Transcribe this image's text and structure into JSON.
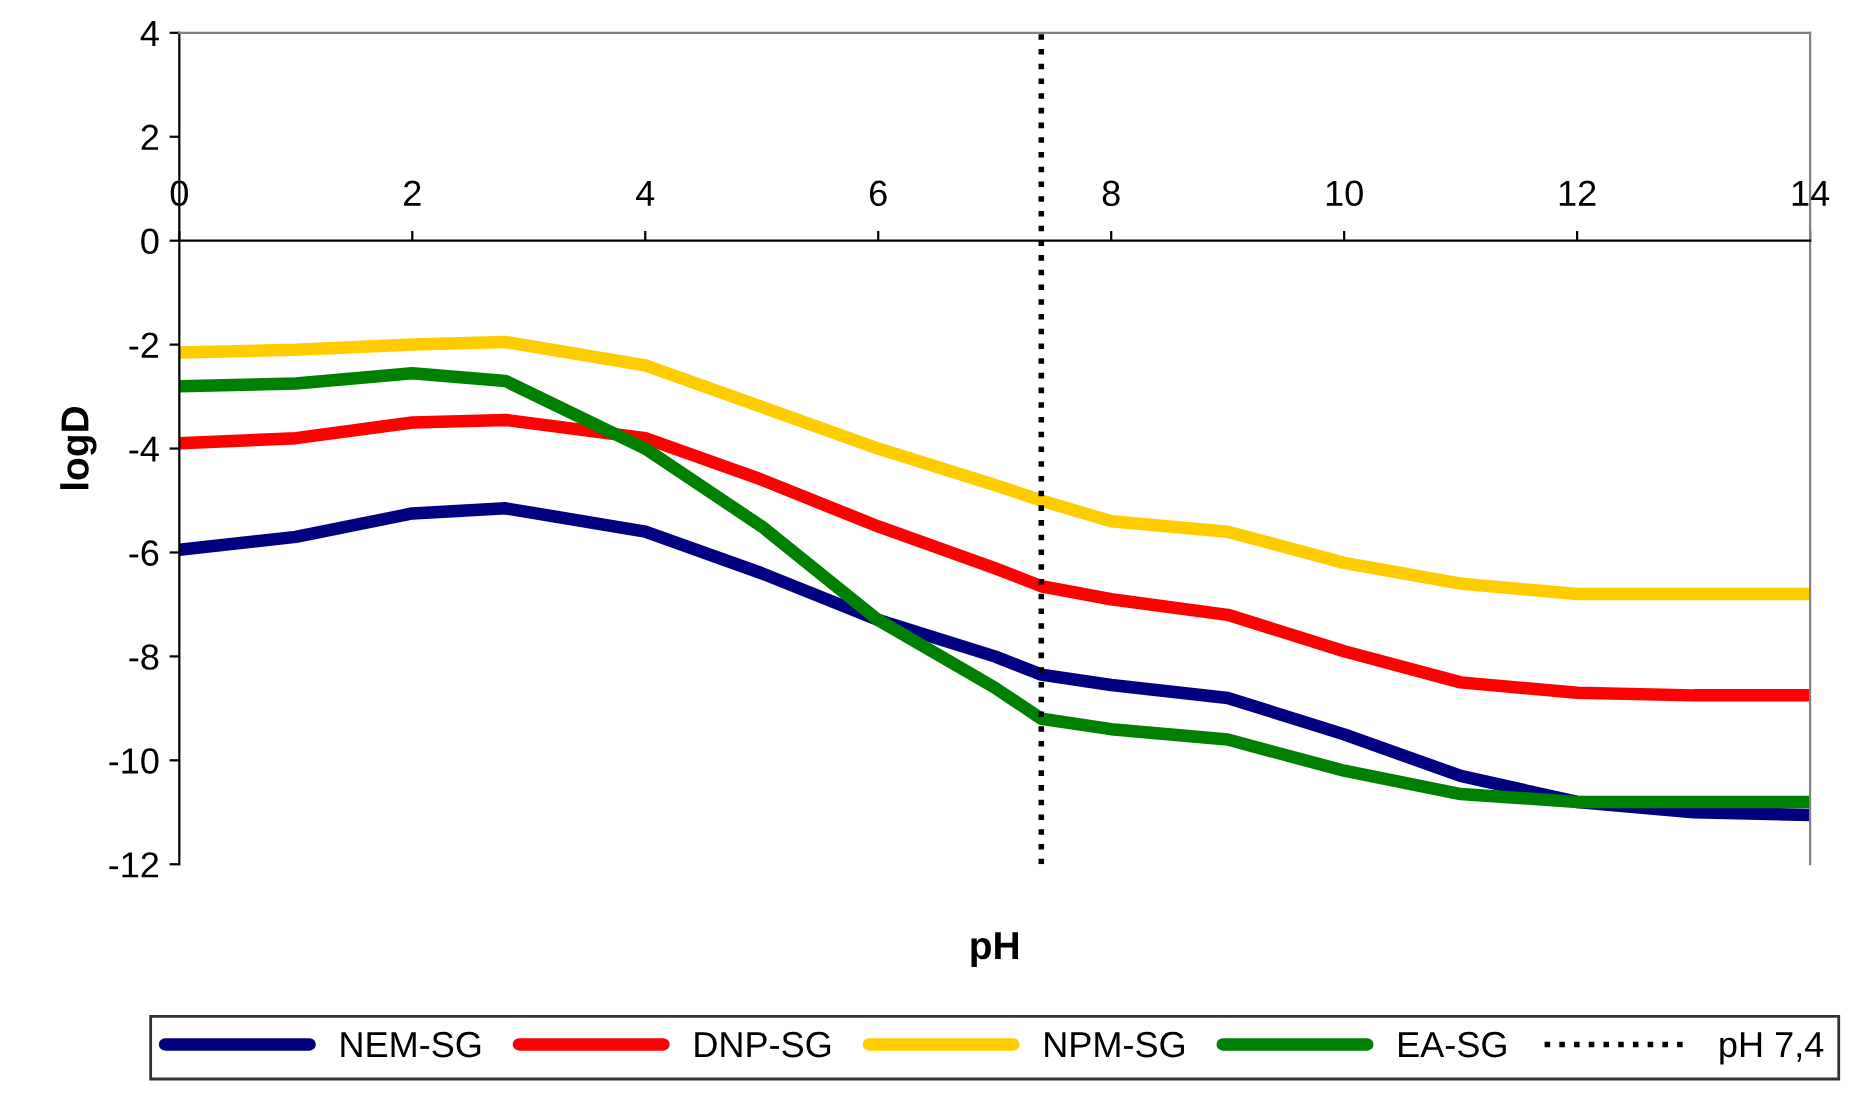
{
  "chart_data": {
    "type": "line",
    "xlabel": "pH",
    "ylabel": "logD",
    "xlim": [
      0,
      14
    ],
    "ylim": [
      -12,
      4
    ],
    "xticks": [
      0,
      2,
      4,
      6,
      8,
      10,
      12,
      14
    ],
    "yticks": [
      -12,
      -10,
      -8,
      -6,
      -4,
      -2,
      0,
      2,
      4
    ],
    "x": [
      0,
      1,
      2,
      2.8,
      4,
      5,
      6,
      7,
      7.4,
      8,
      9,
      10,
      11,
      12,
      13,
      14
    ],
    "series": [
      {
        "name": "NEM-SG",
        "color": "#000080",
        "values": [
          -5.95,
          -5.7,
          -5.25,
          -5.15,
          -5.6,
          -6.4,
          -7.3,
          -8.0,
          -8.35,
          -8.55,
          -8.8,
          -9.5,
          -10.3,
          -10.8,
          -11.0,
          -11.05
        ]
      },
      {
        "name": "DNP-SG",
        "color": "#ff0000",
        "values": [
          -3.9,
          -3.8,
          -3.5,
          -3.45,
          -3.8,
          -4.6,
          -5.5,
          -6.3,
          -6.65,
          -6.9,
          -7.2,
          -7.9,
          -8.5,
          -8.7,
          -8.75,
          -8.75
        ]
      },
      {
        "name": "NPM-SG",
        "color": "#ffcc00",
        "values": [
          -2.15,
          -2.1,
          -2.0,
          -1.95,
          -2.4,
          -3.2,
          -4.0,
          -4.7,
          -5.0,
          -5.4,
          -5.6,
          -6.2,
          -6.6,
          -6.8,
          -6.8,
          -6.8
        ]
      },
      {
        "name": "EA-SG",
        "color": "#008000",
        "values": [
          -2.8,
          -2.75,
          -2.55,
          -2.7,
          -4.0,
          -5.5,
          -7.3,
          -8.6,
          -9.2,
          -9.4,
          -9.6,
          -10.2,
          -10.65,
          -10.8,
          -10.8,
          -10.8
        ]
      }
    ],
    "ref_lines": [
      {
        "axis": "x",
        "value": 7.4,
        "label": "pH 7,4",
        "color": "#000000",
        "line_style": "dotted"
      }
    ],
    "legend": "bottom",
    "grid": false,
    "marker": "none",
    "line_style": "solid"
  }
}
